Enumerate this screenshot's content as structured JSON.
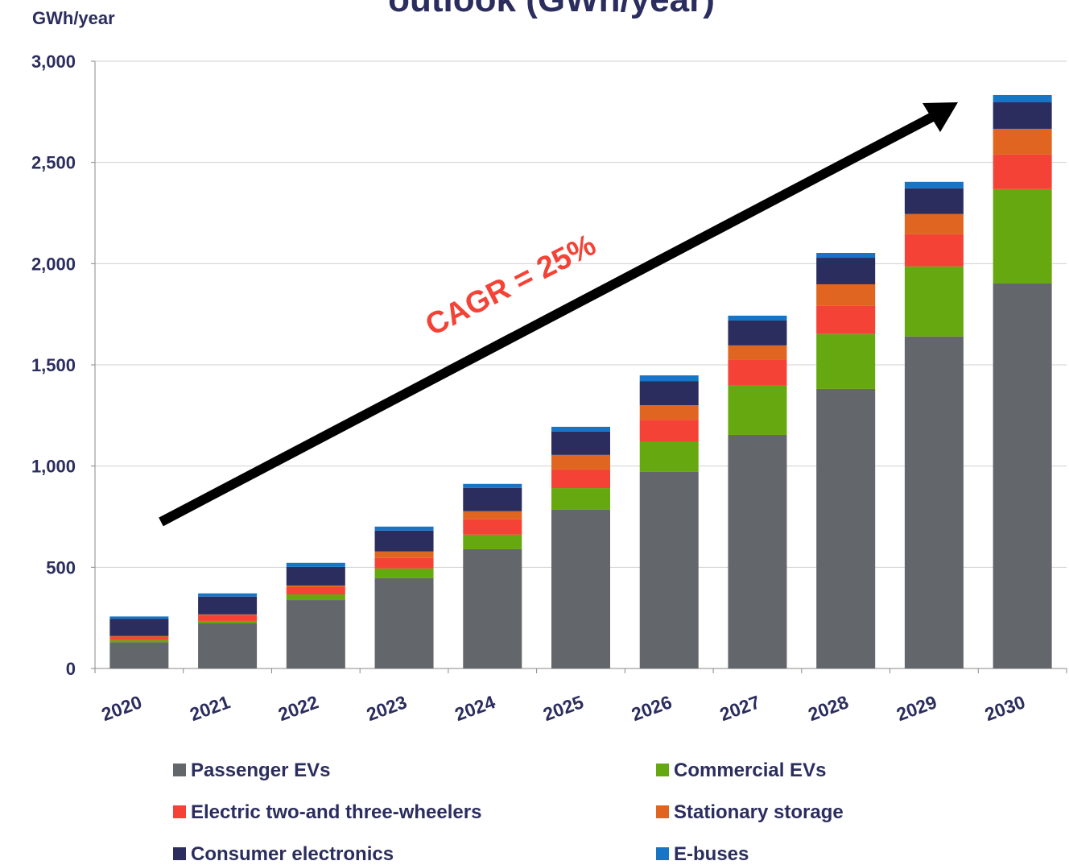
{
  "chart_data": {
    "type": "stacked_bar",
    "title": "outlook (GWh/year)",
    "y_label": "GWh/year",
    "annotation": "CAGR = 25%",
    "categories": [
      "2020",
      "2021",
      "2022",
      "2023",
      "2024",
      "2025",
      "2026",
      "2027",
      "2028",
      "2029",
      "2030"
    ],
    "series": [
      {
        "name": "Passenger EVs",
        "color": "#63666a",
        "values": [
          130,
          223,
          338,
          446,
          589,
          784,
          971,
          1154,
          1381,
          1640,
          1902
        ]
      },
      {
        "name": "Commercial EVs",
        "color": "#66a80f",
        "values": [
          10,
          12,
          28,
          48,
          72,
          107,
          151,
          243,
          271,
          346,
          466
        ]
      },
      {
        "name": "Electric two-and three-wheelers",
        "color": "#f44336",
        "values": [
          15,
          28,
          36,
          52,
          76,
          92,
          107,
          127,
          139,
          159,
          171
        ]
      },
      {
        "name": "Stationary storage",
        "color": "#e06520",
        "values": [
          5,
          4,
          8,
          32,
          40,
          72,
          72,
          72,
          107,
          100,
          127
        ]
      },
      {
        "name": "Consumer electronics",
        "color": "#2b2d5e",
        "values": [
          85,
          88,
          92,
          103,
          115,
          115,
          119,
          123,
          131,
          127,
          131
        ]
      },
      {
        "name": "E-buses",
        "color": "#1874c4",
        "values": [
          12,
          16,
          20,
          20,
          20,
          24,
          28,
          24,
          24,
          32,
          36
        ]
      }
    ],
    "ylim": [
      0,
      3000
    ],
    "yticks": [
      0,
      500,
      {
        "value": 1000,
        "label": "1,000"
      },
      {
        "value": 1500,
        "label": "1,500"
      },
      {
        "value": 2000,
        "label": "2,000"
      },
      {
        "value": 2500,
        "label": "2,500"
      },
      {
        "value": 3000,
        "label": "3,000"
      }
    ],
    "grid": true
  }
}
